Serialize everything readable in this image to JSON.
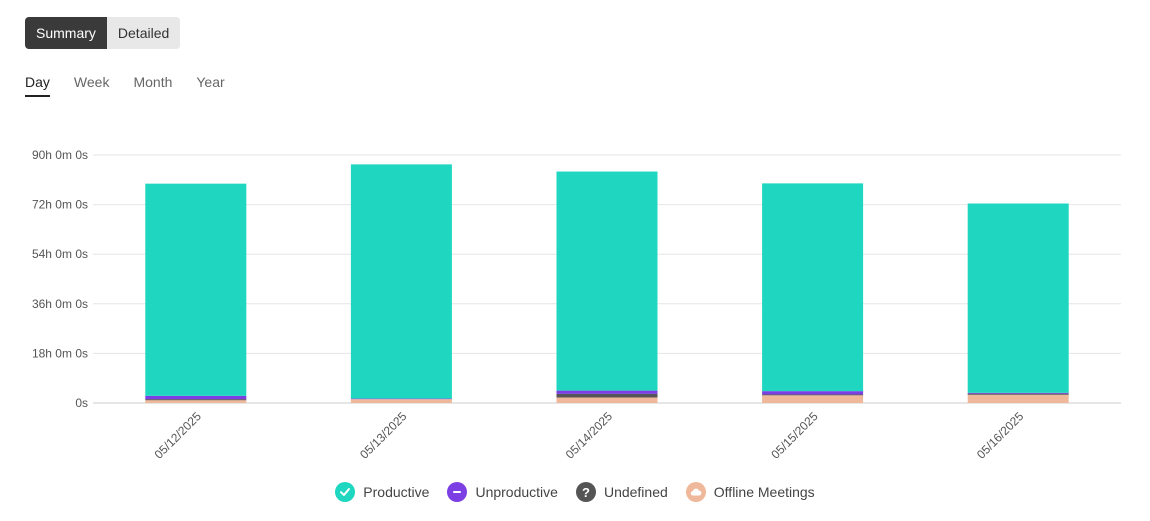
{
  "view_toggle": {
    "summary": "Summary",
    "detailed": "Detailed"
  },
  "period_tabs": [
    "Day",
    "Week",
    "Month",
    "Year"
  ],
  "chart_data": {
    "type": "bar",
    "stacked": true,
    "categories": [
      "05/12/2025",
      "05/13/2025",
      "05/14/2025",
      "05/15/2025",
      "05/16/2025"
    ],
    "yticks": [
      "0s",
      "18h 0m 0s",
      "36h 0m 0s",
      "54h 0m 0s",
      "72h 0m 0s",
      "90h 0m 0s"
    ],
    "ylim": [
      0,
      90
    ],
    "yunit": "hours",
    "grid": true,
    "legend_position": "bottom",
    "series": [
      {
        "name": "Offline Meetings",
        "color": "#f0b89a",
        "icon": "cloud-icon",
        "values": [
          1.0,
          1.4,
          2.0,
          2.8,
          3.0
        ]
      },
      {
        "name": "Undefined",
        "color": "#555555",
        "icon": "question-icon",
        "values": [
          0.4,
          0.0,
          1.3,
          0.3,
          0.4
        ]
      },
      {
        "name": "Unproductive",
        "color": "#7b3fe4",
        "icon": "minus-icon",
        "values": [
          1.2,
          0.2,
          1.2,
          1.2,
          0.3
        ]
      },
      {
        "name": "Productive",
        "color": "#1fd6c0",
        "icon": "check-icon",
        "values": [
          77.0,
          85.0,
          79.5,
          75.4,
          68.7
        ]
      }
    ]
  },
  "legend": [
    {
      "label": "Productive",
      "color": "#1fd6c0",
      "icon": "check-icon"
    },
    {
      "label": "Unproductive",
      "color": "#7b3fe4",
      "icon": "minus-icon"
    },
    {
      "label": "Undefined",
      "color": "#555555",
      "icon": "question-icon"
    },
    {
      "label": "Offline Meetings",
      "color": "#f0b89a",
      "icon": "cloud-icon"
    }
  ]
}
